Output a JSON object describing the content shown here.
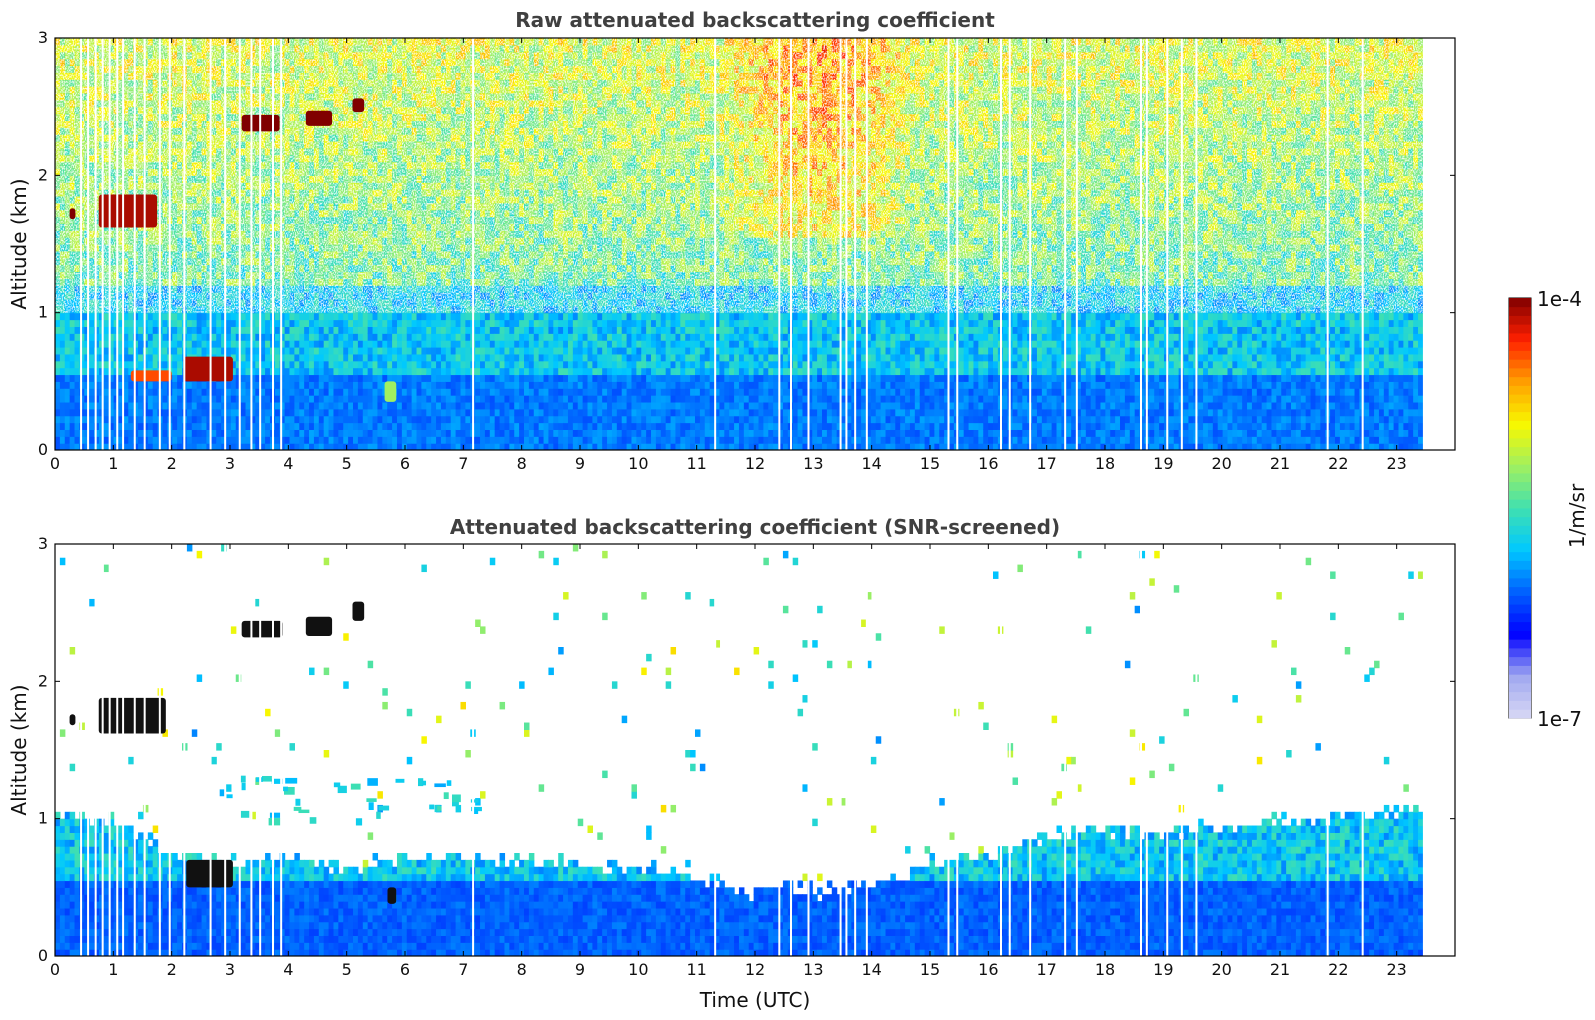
{
  "chart_data": [
    {
      "type": "heatmap",
      "title": "Raw attenuated backscattering coefficient",
      "xlabel": "",
      "ylabel": "Altitude (km)",
      "xlim": [
        0,
        24
      ],
      "ylim": [
        0,
        3
      ],
      "xticks": [
        "0",
        "1",
        "2",
        "3",
        "4",
        "5",
        "6",
        "7",
        "8",
        "9",
        "10",
        "11",
        "12",
        "13",
        "14",
        "15",
        "16",
        "17",
        "18",
        "19",
        "20",
        "21",
        "22",
        "23"
      ],
      "yticks": [
        "0",
        "1",
        "2",
        "3"
      ],
      "data_time_range_utc": [
        0,
        23.45
      ],
      "colorscale": "log",
      "features": [
        {
          "kind": "cloud",
          "t": [
            0.25,
            0.35
          ],
          "alt_km": [
            1.68,
            1.76
          ],
          "log10_beta": -4.0
        },
        {
          "kind": "cloud",
          "t": [
            0.75,
            1.75
          ],
          "alt_km": [
            1.62,
            1.86
          ],
          "log10_beta": -4.1
        },
        {
          "kind": "cloud",
          "t": [
            3.2,
            3.85
          ],
          "alt_km": [
            2.32,
            2.44
          ],
          "log10_beta": -4.0
        },
        {
          "kind": "cloud",
          "t": [
            4.3,
            4.75
          ],
          "alt_km": [
            2.36,
            2.47
          ],
          "log10_beta": -4.0
        },
        {
          "kind": "cloud",
          "t": [
            5.1,
            5.3
          ],
          "alt_km": [
            2.46,
            2.56
          ],
          "log10_beta": -4.0
        },
        {
          "kind": "cloud",
          "t": [
            2.2,
            3.05
          ],
          "alt_km": [
            0.5,
            0.68
          ],
          "log10_beta": -4.1
        },
        {
          "kind": "cloud",
          "t": [
            1.3,
            2.0
          ],
          "alt_km": [
            0.5,
            0.58
          ],
          "log10_beta": -4.4
        },
        {
          "kind": "aerosol",
          "t": [
            5.65,
            5.85
          ],
          "alt_km": [
            0.35,
            0.5
          ],
          "log10_beta": -5.2
        },
        {
          "kind": "background-signal",
          "t": [
            11.3,
            14.8
          ],
          "alt_km": [
            1.5,
            3.0
          ],
          "log10_beta": -5.1
        }
      ]
    },
    {
      "type": "heatmap",
      "title": "Attenuated backscattering coefficient (SNR-screened)",
      "xlabel": "Time (UTC)",
      "ylabel": "Altitude (km)",
      "xlim": [
        0,
        24
      ],
      "ylim": [
        0,
        3
      ],
      "xticks": [
        "0",
        "1",
        "2",
        "3",
        "4",
        "5",
        "6",
        "7",
        "8",
        "9",
        "10",
        "11",
        "12",
        "13",
        "14",
        "15",
        "16",
        "17",
        "18",
        "19",
        "20",
        "21",
        "22",
        "23"
      ],
      "yticks": [
        "0",
        "1",
        "2",
        "3"
      ],
      "data_time_range_utc": [
        0,
        23.45
      ],
      "colorscale": "log",
      "boundary_layer_top_km": [
        [
          0,
          1.0
        ],
        [
          1,
          0.95
        ],
        [
          2,
          0.72
        ],
        [
          3,
          0.68
        ],
        [
          4,
          0.7
        ],
        [
          5,
          0.6
        ],
        [
          6,
          0.72
        ],
        [
          7,
          0.68
        ],
        [
          8,
          0.66
        ],
        [
          9,
          0.64
        ],
        [
          10,
          0.62
        ],
        [
          11,
          0.55
        ],
        [
          11.8,
          0.45
        ],
        [
          12.5,
          0.5
        ],
        [
          13,
          0.45
        ],
        [
          14,
          0.48
        ],
        [
          15,
          0.65
        ],
        [
          16,
          0.72
        ],
        [
          17,
          0.85
        ],
        [
          18,
          0.88
        ],
        [
          19,
          0.9
        ],
        [
          20,
          0.92
        ],
        [
          21,
          0.95
        ],
        [
          22,
          0.98
        ],
        [
          23,
          1.05
        ],
        [
          23.45,
          1.05
        ]
      ],
      "features": [
        {
          "kind": "saturated-cloud",
          "t": [
            0.25,
            0.35
          ],
          "alt_km": [
            1.68,
            1.76
          ]
        },
        {
          "kind": "saturated-cloud",
          "t": [
            0.75,
            1.9
          ],
          "alt_km": [
            1.62,
            1.88
          ]
        },
        {
          "kind": "saturated-cloud",
          "t": [
            3.2,
            3.9
          ],
          "alt_km": [
            2.32,
            2.44
          ]
        },
        {
          "kind": "saturated-cloud",
          "t": [
            4.3,
            4.75
          ],
          "alt_km": [
            2.33,
            2.47
          ]
        },
        {
          "kind": "saturated-cloud",
          "t": [
            5.1,
            5.3
          ],
          "alt_km": [
            2.44,
            2.58
          ]
        },
        {
          "kind": "saturated-cloud",
          "t": [
            2.25,
            3.05
          ],
          "alt_km": [
            0.5,
            0.7
          ]
        },
        {
          "kind": "saturated-cloud",
          "t": [
            5.7,
            5.85
          ],
          "alt_km": [
            0.38,
            0.5
          ]
        },
        {
          "kind": "aerosol-layer",
          "t": [
            2.5,
            7.5
          ],
          "alt_km": [
            1.0,
            1.35
          ]
        }
      ]
    }
  ],
  "colorbar": {
    "min_label": "1e-7",
    "max_label": "1e-4",
    "label": "1/m/sr",
    "colors": [
      "#d8d8f4",
      "#a0a8f0",
      "#0000ff",
      "#0060ff",
      "#00c8ff",
      "#40e0b0",
      "#a0f060",
      "#f8f800",
      "#ffa000",
      "#ff2000",
      "#800000"
    ]
  }
}
